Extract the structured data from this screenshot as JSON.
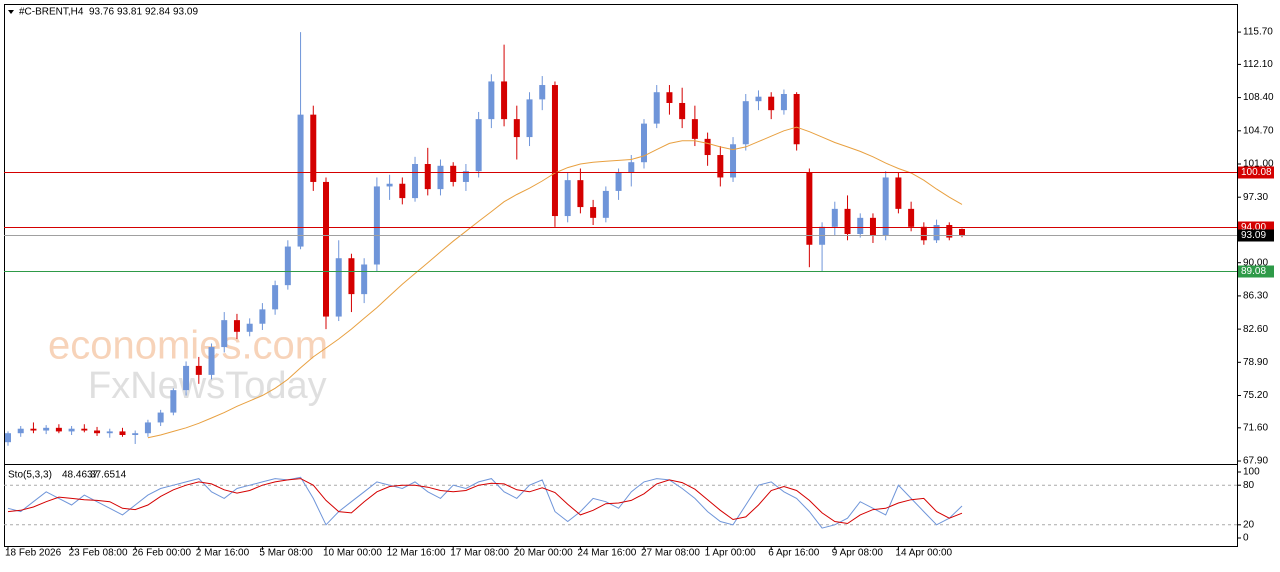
{
  "chart_data": {
    "type": "candlestick",
    "symbol": "#C-BRENT,H4",
    "watermark": [
      "economies.com",
      "FxNewsToday"
    ],
    "up_color": "#6f95d9",
    "down_color": "#d40000",
    "ma_color": "#e8a040",
    "categories": [
      "18 Feb 2026",
      null,
      null,
      null,
      null,
      "23 Feb 08:00",
      null,
      null,
      null,
      null,
      "26 Feb 00:00",
      null,
      null,
      null,
      null,
      "2 Mar 16:00",
      null,
      null,
      null,
      null,
      "5 Mar 08:00",
      null,
      null,
      null,
      null,
      "10 Mar 00:00",
      null,
      null,
      null,
      null,
      "12 Mar 16:00",
      null,
      null,
      null,
      null,
      "17 Mar 08:00",
      null,
      null,
      null,
      null,
      "20 Mar 00:00",
      null,
      null,
      null,
      null,
      "24 Mar 16:00",
      null,
      null,
      null,
      null,
      "27 Mar 08:00",
      null,
      null,
      null,
      null,
      "1 Apr 00:00",
      null,
      null,
      null,
      null,
      "6 Apr 16:00",
      null,
      null,
      null,
      null,
      "9 Apr 08:00",
      null,
      null,
      null,
      null,
      "14 Apr 00:00",
      null,
      null,
      null,
      null,
      null
    ],
    "open": [
      70.0,
      71.0,
      71.5,
      71.3,
      71.6,
      71.2,
      71.5,
      71.3,
      71.0,
      71.2,
      70.8,
      71.0,
      72.2,
      73.3,
      75.8,
      78.5,
      77.5,
      80.6,
      83.6,
      82.3,
      83.2,
      84.8,
      87.5,
      91.8,
      106.5,
      99.0,
      84.0,
      90.5,
      86.5,
      89.8,
      98.5,
      98.8,
      97.2,
      101.0,
      98.2,
      100.8,
      99.0,
      100.2,
      106.0,
      110.2,
      106.0,
      104.0,
      108.2,
      109.8,
      95.2,
      99.2,
      96.2,
      95.0,
      98.0,
      100.0,
      101.2,
      105.5,
      109.0,
      107.8,
      106.0,
      103.8,
      102.0,
      99.5,
      103.2,
      108.0,
      108.5,
      107.0,
      108.8,
      100.0,
      92.0,
      94.0,
      96.0,
      93.2,
      95.0,
      93.0,
      99.5,
      96.0,
      94.0,
      92.5,
      94.2,
      93.76
    ],
    "high": [
      71.2,
      71.8,
      72.2,
      71.9,
      72.0,
      71.8,
      72.0,
      71.7,
      71.5,
      71.6,
      71.3,
      72.5,
      73.6,
      76.0,
      79.0,
      79.5,
      81.0,
      84.5,
      84.3,
      83.8,
      85.5,
      88.0,
      92.5,
      115.7,
      107.5,
      99.5,
      92.5,
      91.0,
      90.5,
      99.5,
      99.8,
      99.5,
      101.8,
      102.8,
      101.5,
      101.2,
      101.0,
      106.8,
      111.0,
      114.3,
      107.5,
      109.0,
      110.8,
      110.2,
      100.0,
      100.5,
      97.0,
      98.5,
      100.5,
      102.0,
      106.0,
      109.8,
      109.8,
      109.5,
      107.5,
      104.5,
      103.0,
      104.0,
      108.8,
      109.2,
      109.0,
      109.3,
      109.0,
      100.5,
      94.5,
      96.8,
      97.5,
      95.5,
      95.5,
      100.2,
      100.0,
      96.8,
      94.5,
      94.8,
      94.5,
      93.81
    ],
    "low": [
      69.6,
      70.6,
      71.0,
      70.9,
      71.0,
      70.8,
      71.1,
      70.7,
      70.5,
      70.6,
      69.8,
      70.6,
      71.8,
      73.0,
      75.2,
      76.5,
      77.0,
      80.0,
      81.5,
      81.8,
      82.5,
      84.2,
      87.0,
      91.5,
      98.0,
      82.6,
      83.5,
      84.5,
      85.5,
      89.0,
      97.0,
      96.5,
      96.8,
      97.5,
      97.5,
      98.5,
      98.0,
      99.5,
      105.0,
      105.2,
      101.5,
      103.0,
      107.0,
      94.0,
      94.5,
      95.5,
      94.2,
      94.5,
      97.0,
      98.5,
      100.5,
      105.0,
      106.5,
      105.0,
      103.0,
      100.8,
      98.5,
      99.0,
      102.5,
      107.0,
      106.0,
      106.5,
      102.5,
      89.5,
      89.0,
      93.0,
      92.5,
      92.8,
      92.2,
      92.5,
      95.5,
      93.5,
      92.0,
      92.2,
      92.5,
      92.84
    ],
    "close": [
      71.0,
      71.5,
      71.3,
      71.6,
      71.2,
      71.5,
      71.3,
      71.0,
      71.2,
      70.8,
      71.0,
      72.2,
      73.3,
      75.8,
      78.5,
      77.5,
      80.6,
      83.6,
      82.3,
      83.2,
      84.8,
      87.5,
      91.8,
      106.5,
      99.0,
      84.0,
      90.5,
      86.5,
      89.8,
      98.5,
      98.8,
      97.2,
      101.0,
      98.2,
      100.8,
      99.0,
      100.2,
      106.0,
      110.2,
      106.0,
      104.0,
      108.2,
      109.8,
      95.2,
      99.2,
      96.2,
      95.0,
      98.0,
      100.0,
      101.2,
      105.5,
      109.0,
      107.8,
      106.0,
      103.8,
      102.0,
      99.5,
      103.2,
      108.0,
      108.5,
      107.0,
      108.8,
      103.2,
      92.0,
      94.0,
      96.0,
      93.2,
      95.0,
      93.0,
      99.5,
      96.0,
      94.0,
      92.5,
      94.2,
      92.8,
      93.09
    ],
    "ma": [
      null,
      null,
      null,
      null,
      null,
      null,
      null,
      null,
      null,
      null,
      null,
      70.5,
      70.8,
      71.2,
      71.6,
      72.1,
      72.7,
      73.3,
      74.0,
      74.6,
      75.2,
      76.0,
      77.0,
      78.3,
      79.5,
      80.5,
      81.5,
      82.6,
      83.8,
      85.0,
      86.3,
      87.6,
      88.8,
      90.0,
      91.2,
      92.4,
      93.5,
      94.6,
      95.7,
      96.8,
      97.6,
      98.3,
      99.1,
      100.0,
      100.6,
      101.0,
      101.2,
      101.3,
      101.4,
      101.5,
      101.9,
      102.6,
      103.3,
      103.6,
      103.6,
      103.3,
      102.9,
      102.6,
      102.9,
      103.5,
      104.1,
      104.7,
      105.1,
      104.6,
      104.0,
      103.4,
      102.9,
      102.4,
      101.8,
      101.1,
      100.5,
      100.0,
      99.2,
      98.2,
      97.3,
      96.5
    ],
    "ylim": [
      67.68,
      118.83
    ],
    "yticks": [
      {
        "value": 67.9,
        "label": "67.90"
      },
      {
        "value": 71.6,
        "label": "71.60"
      },
      {
        "value": 75.2,
        "label": "75.20"
      },
      {
        "value": 78.9,
        "label": "78.90"
      },
      {
        "value": 82.6,
        "label": "82.60"
      },
      {
        "value": 86.3,
        "label": "86.30"
      },
      {
        "value": 90,
        "label": "90.00"
      },
      {
        "value": 93.7,
        "label": "93.70"
      },
      {
        "value": 97.3,
        "label": "97.30"
      },
      {
        "value": 101,
        "label": "101.00"
      },
      {
        "value": 104.7,
        "label": "104.70"
      },
      {
        "value": 108.4,
        "label": "108.40"
      },
      {
        "value": 112.1,
        "label": "112.10"
      },
      {
        "value": 115.7,
        "label": "115.70"
      }
    ],
    "levels": [
      {
        "value": 100.08,
        "color": "#d40000"
      },
      {
        "value": 94,
        "label": "94.00",
        "color": "#d40000"
      },
      {
        "value": 93.09,
        "color": "#000000",
        "line_color": "#a0a0a0"
      },
      {
        "value": 89.08,
        "color": "#2e9a48"
      }
    ],
    "stochastic": {
      "label": "Sto(5,3,3)",
      "main_color": "#6f95d9",
      "signal_color": "#d40000",
      "main": [
        45,
        40,
        55,
        70,
        60,
        50,
        65,
        55,
        45,
        35,
        50,
        65,
        75,
        80,
        85,
        90,
        70,
        60,
        75,
        80,
        85,
        90,
        88,
        92,
        60,
        20,
        40,
        55,
        70,
        85,
        80,
        75,
        85,
        70,
        60,
        80,
        75,
        85,
        90,
        70,
        60,
        80,
        88,
        40,
        25,
        40,
        60,
        55,
        45,
        70,
        85,
        90,
        88,
        75,
        60,
        40,
        25,
        20,
        50,
        80,
        85,
        70,
        60,
        40,
        15,
        20,
        30,
        55,
        45,
        35,
        80,
        60,
        40,
        20,
        30,
        48.4637
      ],
      "signal": [
        40,
        42,
        47,
        55,
        62,
        60,
        58,
        57,
        55,
        45,
        43,
        50,
        63,
        73,
        80,
        85,
        82,
        73,
        68,
        72,
        80,
        85,
        88,
        90,
        80,
        57,
        40,
        38,
        55,
        70,
        78,
        80,
        80,
        77,
        72,
        70,
        72,
        80,
        83,
        82,
        73,
        70,
        76,
        69,
        51,
        35,
        42,
        52,
        53,
        57,
        67,
        82,
        88,
        84,
        74,
        58,
        42,
        28,
        32,
        50,
        72,
        78,
        72,
        57,
        38,
        25,
        22,
        35,
        43,
        45,
        53,
        58,
        60,
        40,
        30,
        37.6514
      ],
      "ylim": [
        -12.1,
        109.1
      ],
      "yticks": [
        0,
        20,
        80,
        100
      ],
      "levels": [
        20,
        80
      ]
    }
  }
}
